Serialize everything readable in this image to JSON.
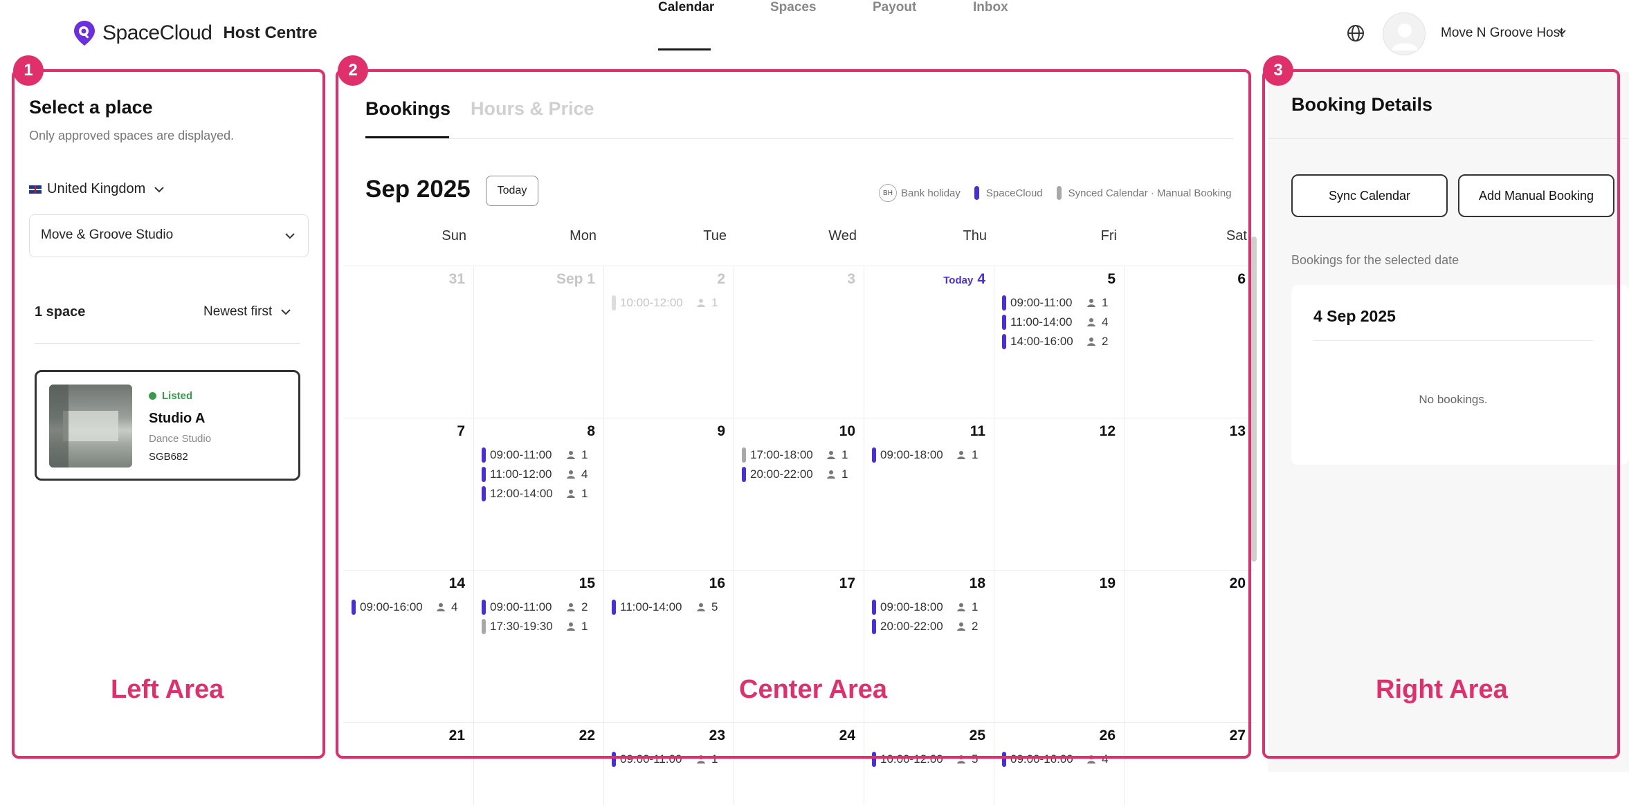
{
  "header": {
    "logo_brand": "SpaceCloud",
    "logo_suffix": "Host Centre",
    "nav": [
      {
        "label": "Calendar",
        "active": true
      },
      {
        "label": "Spaces",
        "active": false
      },
      {
        "label": "Payout",
        "active": false
      },
      {
        "label": "Inbox",
        "active": false
      }
    ],
    "user_name": "Move N Groove Host"
  },
  "annotations": {
    "badges": [
      "1",
      "2",
      "3"
    ],
    "labels": [
      "Left Area",
      "Center Area",
      "Right Area"
    ],
    "color": "#e0306b"
  },
  "left": {
    "title": "Select a place",
    "subtitle": "Only approved spaces are displayed.",
    "country": "United Kingdom",
    "place": "Move & Groove Studio",
    "space_count": "1 space",
    "sort": "Newest first",
    "card": {
      "status": "Listed",
      "name": "Studio A",
      "type": "Dance Studio",
      "code": "SGB682"
    }
  },
  "center": {
    "tabs": [
      "Bookings",
      "Hours & Price"
    ],
    "month": "Sep 2025",
    "today_button": "Today",
    "legend": {
      "bh_badge": "BH",
      "bank_holiday": "Bank holiday",
      "spacecloud": "SpaceCloud",
      "synced": "Synced Calendar · Manual Booking"
    },
    "colors": {
      "spacecloud": "#4a2fd6",
      "synced": "#a8a8a8",
      "today": "#4a2fd6"
    },
    "weekdays": [
      "Sun",
      "Mon",
      "Tue",
      "Wed",
      "Thu",
      "Fri",
      "Sat"
    ],
    "today_prefix": "Today",
    "weeks": [
      [
        {
          "label": "31",
          "dim": true,
          "bookings": []
        },
        {
          "label": "Sep 1",
          "dim": true,
          "bookings": []
        },
        {
          "label": "2",
          "dim": true,
          "bookings": [
            {
              "time": "10:00-12:00",
              "count": "1",
              "source": "synced",
              "past": true
            }
          ]
        },
        {
          "label": "3",
          "dim": true,
          "bookings": []
        },
        {
          "label": "4",
          "today": true,
          "bookings": []
        },
        {
          "label": "5",
          "bookings": [
            {
              "time": "09:00-11:00",
              "count": "1",
              "source": "spacecloud"
            },
            {
              "time": "11:00-14:00",
              "count": "4",
              "source": "spacecloud"
            },
            {
              "time": "14:00-16:00",
              "count": "2",
              "source": "spacecloud"
            }
          ]
        },
        {
          "label": "6",
          "bookings": []
        }
      ],
      [
        {
          "label": "7",
          "bookings": []
        },
        {
          "label": "8",
          "bookings": [
            {
              "time": "09:00-11:00",
              "count": "1",
              "source": "spacecloud"
            },
            {
              "time": "11:00-12:00",
              "count": "4",
              "source": "spacecloud"
            },
            {
              "time": "12:00-14:00",
              "count": "1",
              "source": "spacecloud"
            }
          ]
        },
        {
          "label": "9",
          "bookings": []
        },
        {
          "label": "10",
          "bookings": [
            {
              "time": "17:00-18:00",
              "count": "1",
              "source": "synced"
            },
            {
              "time": "20:00-22:00",
              "count": "1",
              "source": "spacecloud"
            }
          ]
        },
        {
          "label": "11",
          "bookings": [
            {
              "time": "09:00-18:00",
              "count": "1",
              "source": "spacecloud"
            }
          ]
        },
        {
          "label": "12",
          "bookings": []
        },
        {
          "label": "13",
          "bookings": []
        }
      ],
      [
        {
          "label": "14",
          "bookings": [
            {
              "time": "09:00-16:00",
              "count": "4",
              "source": "spacecloud"
            }
          ]
        },
        {
          "label": "15",
          "bookings": [
            {
              "time": "09:00-11:00",
              "count": "2",
              "source": "spacecloud"
            },
            {
              "time": "17:30-19:30",
              "count": "1",
              "source": "synced"
            }
          ]
        },
        {
          "label": "16",
          "bookings": [
            {
              "time": "11:00-14:00",
              "count": "5",
              "source": "spacecloud"
            }
          ]
        },
        {
          "label": "17",
          "bookings": []
        },
        {
          "label": "18",
          "bookings": [
            {
              "time": "09:00-18:00",
              "count": "1",
              "source": "spacecloud"
            },
            {
              "time": "20:00-22:00",
              "count": "2",
              "source": "spacecloud"
            }
          ]
        },
        {
          "label": "19",
          "bookings": []
        },
        {
          "label": "20",
          "bookings": []
        }
      ],
      [
        {
          "label": "21",
          "bookings": []
        },
        {
          "label": "22",
          "bookings": []
        },
        {
          "label": "23",
          "bookings": [
            {
              "time": "09:00-11:00",
              "count": "1",
              "source": "spacecloud"
            }
          ]
        },
        {
          "label": "24",
          "bookings": []
        },
        {
          "label": "25",
          "bookings": [
            {
              "time": "10:00-12:00",
              "count": "5",
              "source": "spacecloud"
            }
          ]
        },
        {
          "label": "26",
          "bookings": [
            {
              "time": "09:00-16:00",
              "count": "4",
              "source": "spacecloud"
            }
          ]
        },
        {
          "label": "27",
          "bookings": []
        }
      ]
    ]
  },
  "right": {
    "title": "Booking Details",
    "sync_button": "Sync Calendar",
    "manual_button": "Add Manual Booking",
    "selected_label": "Bookings for the selected date",
    "selected_date": "4 Sep 2025",
    "empty_text": "No bookings."
  },
  "icons": {
    "logo": "map-pin-logo-icon",
    "globe": "globe-icon",
    "avatar": "user-avatar-icon",
    "chevron": "chevron-down-icon",
    "person": "person-icon",
    "flag": "uk-flag-icon"
  }
}
